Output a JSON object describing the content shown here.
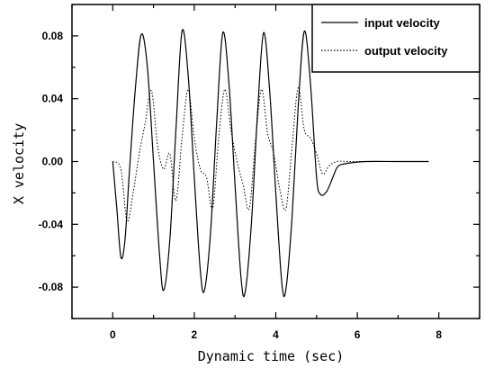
{
  "chart_data": {
    "type": "line",
    "title": "",
    "xlabel": "Dynamic time (sec)",
    "ylabel": "X velocity",
    "xlim": [
      -1,
      9
    ],
    "ylim": [
      -0.1,
      0.1
    ],
    "xticks": [
      "0",
      "2",
      "4",
      "6",
      "8"
    ],
    "yticks": [
      "0.08",
      "0.04",
      "0.00",
      "-0.04",
      "-0.08"
    ],
    "legend_position": "top-right",
    "series": [
      {
        "name": "input velocity",
        "style": "solid",
        "x": [
          0.0,
          0.1,
          0.2,
          0.3,
          0.4,
          0.55,
          0.7,
          0.85,
          1.0,
          1.15,
          1.25,
          1.4,
          1.55,
          1.7,
          1.85,
          2.0,
          2.15,
          2.25,
          2.4,
          2.55,
          2.7,
          2.85,
          3.0,
          3.15,
          3.25,
          3.4,
          3.55,
          3.7,
          3.85,
          4.0,
          4.15,
          4.25,
          4.4,
          4.55,
          4.7,
          4.85,
          5.0,
          5.1,
          5.25,
          5.4,
          5.5,
          5.6,
          5.8,
          6.2,
          7.0,
          7.75
        ],
        "y": [
          0.0,
          -0.03,
          -0.061,
          -0.05,
          -0.01,
          0.045,
          0.081,
          0.06,
          0.0,
          -0.06,
          -0.082,
          -0.05,
          0.02,
          0.083,
          0.055,
          -0.01,
          -0.07,
          -0.082,
          -0.045,
          0.025,
          0.082,
          0.05,
          -0.015,
          -0.075,
          -0.083,
          -0.04,
          0.03,
          0.082,
          0.045,
          -0.02,
          -0.078,
          -0.081,
          -0.035,
          0.035,
          0.083,
          0.05,
          -0.01,
          -0.021,
          -0.019,
          -0.01,
          -0.004,
          -0.002,
          -0.001,
          0.0,
          0.0,
          0.0
        ]
      },
      {
        "name": "output velocity",
        "style": "dotted",
        "x": [
          0.0,
          0.2,
          0.35,
          0.5,
          0.65,
          0.8,
          0.95,
          1.1,
          1.25,
          1.4,
          1.55,
          1.7,
          1.85,
          2.0,
          2.15,
          2.3,
          2.45,
          2.6,
          2.75,
          2.9,
          3.05,
          3.2,
          3.35,
          3.5,
          3.65,
          3.8,
          3.95,
          4.1,
          4.25,
          4.4,
          4.55,
          4.7,
          4.85,
          5.0,
          5.15,
          5.3,
          5.5,
          5.8,
          6.2,
          7.0
        ],
        "y": [
          0.0,
          -0.005,
          -0.038,
          -0.02,
          0.005,
          0.025,
          0.045,
          0.01,
          -0.005,
          0.005,
          -0.025,
          0.015,
          0.046,
          0.015,
          -0.005,
          -0.01,
          -0.03,
          0.015,
          0.046,
          0.02,
          0.0,
          -0.015,
          -0.03,
          0.012,
          0.046,
          0.018,
          0.005,
          -0.018,
          -0.03,
          0.01,
          0.047,
          0.02,
          0.015,
          0.005,
          -0.008,
          -0.003,
          0.0,
          0.0,
          0.0,
          0.0
        ]
      }
    ]
  }
}
